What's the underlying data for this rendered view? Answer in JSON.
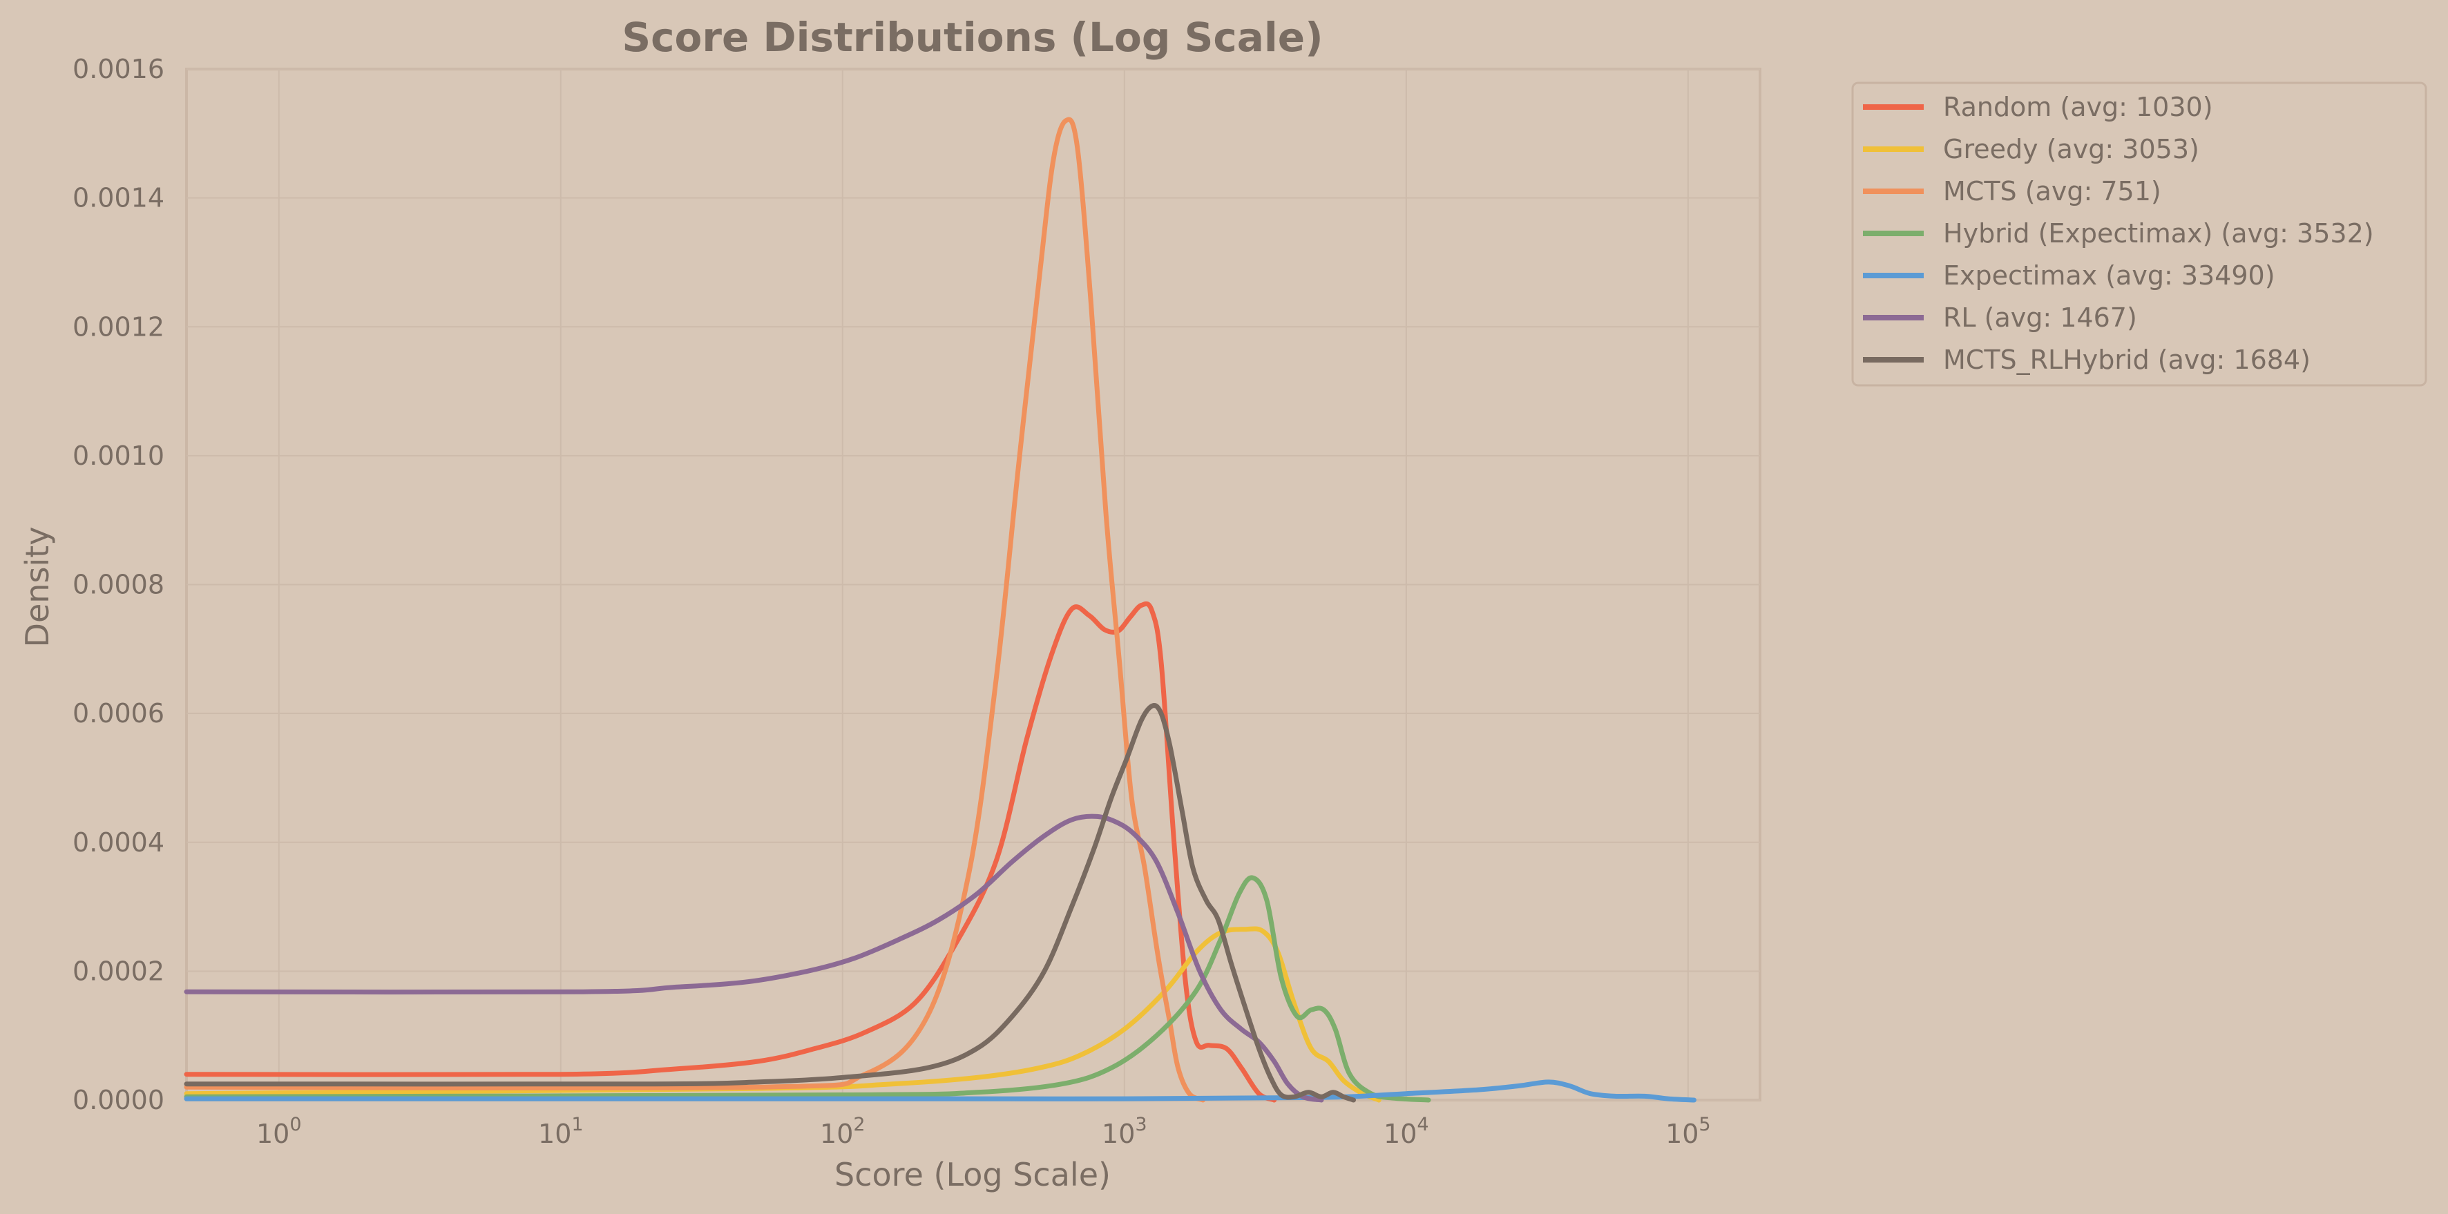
{
  "chart_data": {
    "type": "line",
    "title": "Score Distributions (Log Scale)",
    "xlabel": "Score (Log Scale)",
    "ylabel": "Density",
    "xscale": "log",
    "xlim": [
      0.47,
      180000
    ],
    "ylim": [
      0,
      0.0016
    ],
    "x_ticks": [
      {
        "value": 1,
        "base": "10",
        "exp": "0"
      },
      {
        "value": 10,
        "base": "10",
        "exp": "1"
      },
      {
        "value": 100,
        "base": "10",
        "exp": "2"
      },
      {
        "value": 1000,
        "base": "10",
        "exp": "3"
      },
      {
        "value": 10000,
        "base": "10",
        "exp": "4"
      },
      {
        "value": 100000,
        "base": "10",
        "exp": "5"
      }
    ],
    "y_ticks": [
      {
        "value": 0,
        "label": "0.0000"
      },
      {
        "value": 0.0002,
        "label": "0.0002"
      },
      {
        "value": 0.0004,
        "label": "0.0004"
      },
      {
        "value": 0.0006,
        "label": "0.0006"
      },
      {
        "value": 0.0008,
        "label": "0.0008"
      },
      {
        "value": 0.001,
        "label": "0.0010"
      },
      {
        "value": 0.0012,
        "label": "0.0012"
      },
      {
        "value": 0.0014,
        "label": "0.0014"
      },
      {
        "value": 0.0016,
        "label": "0.0016"
      }
    ],
    "grid": true,
    "legend_position": "outside-top-right",
    "series": [
      {
        "name": "Random (avg: 1030)",
        "color": "#ef6548",
        "points": [
          [
            0.47,
            4e-05
          ],
          [
            10,
            4e-05
          ],
          [
            25,
            4.8e-05
          ],
          [
            50,
            6e-05
          ],
          [
            80,
            8e-05
          ],
          [
            120,
            0.000105
          ],
          [
            180,
            0.00015
          ],
          [
            250,
            0.00024
          ],
          [
            350,
            0.00037
          ],
          [
            450,
            0.00056
          ],
          [
            550,
            0.00069
          ],
          [
            650,
            0.000762
          ],
          [
            750,
            0.000752
          ],
          [
            850,
            0.00073
          ],
          [
            950,
            0.000728
          ],
          [
            1050,
            0.00075
          ],
          [
            1150,
            0.000768
          ],
          [
            1250,
            0.00076
          ],
          [
            1350,
            0.00068
          ],
          [
            1500,
            0.0004
          ],
          [
            1650,
            0.00018
          ],
          [
            1800,
            9e-05
          ],
          [
            2000,
            8.5e-05
          ],
          [
            2300,
            8e-05
          ],
          [
            2600,
            5e-05
          ],
          [
            3000,
            1e-05
          ],
          [
            3400,
            0
          ]
        ]
      },
      {
        "name": "Greedy (avg: 3053)",
        "color": "#f0c038",
        "points": [
          [
            0.47,
            1e-05
          ],
          [
            50,
            1.8e-05
          ],
          [
            150,
            2.5e-05
          ],
          [
            300,
            3.5e-05
          ],
          [
            500,
            5e-05
          ],
          [
            700,
            7e-05
          ],
          [
            1000,
            0.00011
          ],
          [
            1400,
            0.00017
          ],
          [
            1800,
            0.00023
          ],
          [
            2200,
            0.00026
          ],
          [
            2700,
            0.000265
          ],
          [
            3100,
            0.000262
          ],
          [
            3500,
            0.00023
          ],
          [
            4000,
            0.00015
          ],
          [
            4600,
            8e-05
          ],
          [
            5300,
            6e-05
          ],
          [
            6000,
            3e-05
          ],
          [
            7000,
            1e-05
          ],
          [
            8000,
            0
          ]
        ]
      },
      {
        "name": "MCTS (avg: 751)",
        "color": "#f0915c",
        "points": [
          [
            0.47,
            2e-05
          ],
          [
            50,
            2e-05
          ],
          [
            120,
            4e-05
          ],
          [
            200,
            0.00013
          ],
          [
            280,
            0.00035
          ],
          [
            350,
            0.00065
          ],
          [
            420,
            0.00098
          ],
          [
            500,
            0.00128
          ],
          [
            560,
            0.00146
          ],
          [
            620,
            0.00152
          ],
          [
            680,
            0.00148
          ],
          [
            760,
            0.00124
          ],
          [
            860,
            0.00091
          ],
          [
            960,
            0.00068
          ],
          [
            1060,
            0.00047
          ],
          [
            1180,
            0.00036
          ],
          [
            1320,
            0.00022
          ],
          [
            1450,
            0.00012
          ],
          [
            1550,
            5e-05
          ],
          [
            1700,
            1e-05
          ],
          [
            1900,
            0
          ]
        ]
      },
      {
        "name": "Hybrid (Expectimax) (avg: 3532)",
        "color": "#7cae6c",
        "points": [
          [
            0.47,
            5e-06
          ],
          [
            100,
            8e-06
          ],
          [
            300,
            1.2e-05
          ],
          [
            600,
            2.5e-05
          ],
          [
            900,
            5e-05
          ],
          [
            1300,
            0.0001
          ],
          [
            1800,
            0.00017
          ],
          [
            2200,
            0.00025
          ],
          [
            2550,
            0.00032
          ],
          [
            2850,
            0.000345
          ],
          [
            3200,
            0.00031
          ],
          [
            3600,
            0.00019
          ],
          [
            4100,
            0.00013
          ],
          [
            4600,
            0.00014
          ],
          [
            5100,
            0.00014
          ],
          [
            5600,
            0.00011
          ],
          [
            6300,
            4e-05
          ],
          [
            7500,
            1e-05
          ],
          [
            9000,
            3e-06
          ],
          [
            12000,
            0
          ]
        ]
      },
      {
        "name": "Expectimax (avg: 33490)",
        "color": "#5b9bd5",
        "points": [
          [
            0.47,
            2e-06
          ],
          [
            100,
            2e-06
          ],
          [
            1000,
            2e-06
          ],
          [
            5000,
            4e-06
          ],
          [
            10000,
            1e-05
          ],
          [
            18000,
            1.6e-05
          ],
          [
            25000,
            2.2e-05
          ],
          [
            32000,
            2.8e-05
          ],
          [
            38000,
            2.2e-05
          ],
          [
            45000,
            1e-05
          ],
          [
            55000,
            6e-06
          ],
          [
            70000,
            6e-06
          ],
          [
            85000,
            2e-06
          ],
          [
            105000,
            0
          ]
        ]
      },
      {
        "name": "RL (avg: 1467)",
        "color": "#8c6a94",
        "points": [
          [
            0.47,
            0.000168
          ],
          [
            12,
            0.000168
          ],
          [
            25,
            0.000175
          ],
          [
            45,
            0.000183
          ],
          [
            75,
            0.0002
          ],
          [
            110,
            0.00022
          ],
          [
            160,
            0.00025
          ],
          [
            220,
            0.00028
          ],
          [
            300,
            0.00032
          ],
          [
            400,
            0.00037
          ],
          [
            520,
            0.00041
          ],
          [
            650,
            0.000435
          ],
          [
            800,
            0.00044
          ],
          [
            950,
            0.00043
          ],
          [
            1100,
            0.00041
          ],
          [
            1300,
            0.00037
          ],
          [
            1550,
            0.00029
          ],
          [
            1850,
            0.0002
          ],
          [
            2200,
            0.00014
          ],
          [
            2600,
            0.00011
          ],
          [
            3000,
            9e-05
          ],
          [
            3400,
            6e-05
          ],
          [
            3800,
            2.5e-05
          ],
          [
            4300,
            5e-06
          ],
          [
            5000,
            0
          ]
        ]
      },
      {
        "name": "MCTS_RLHybrid (avg: 1684)",
        "color": "#786a60",
        "points": [
          [
            0.47,
            2.5e-05
          ],
          [
            20,
            2.5e-05
          ],
          [
            50,
            2.8e-05
          ],
          [
            100,
            3.5e-05
          ],
          [
            200,
            5e-05
          ],
          [
            300,
            8e-05
          ],
          [
            400,
            0.00013
          ],
          [
            520,
            0.0002
          ],
          [
            650,
            0.0003
          ],
          [
            780,
            0.00039
          ],
          [
            900,
            0.00047
          ],
          [
            1020,
            0.00053
          ],
          [
            1150,
            0.00059
          ],
          [
            1260,
            0.000612
          ],
          [
            1350,
            0.0006
          ],
          [
            1450,
            0.00055
          ],
          [
            1600,
            0.00045
          ],
          [
            1750,
            0.00036
          ],
          [
            1950,
            0.00031
          ],
          [
            2150,
            0.00028
          ],
          [
            2400,
            0.00021
          ],
          [
            2700,
            0.00014
          ],
          [
            3000,
            8e-05
          ],
          [
            3300,
            3.5e-05
          ],
          [
            3600,
            8e-06
          ],
          [
            4000,
            5e-06
          ],
          [
            4500,
            1.2e-05
          ],
          [
            5000,
            5e-06
          ],
          [
            5500,
            1.2e-05
          ],
          [
            6000,
            5e-06
          ],
          [
            6500,
            0
          ]
        ]
      }
    ]
  }
}
